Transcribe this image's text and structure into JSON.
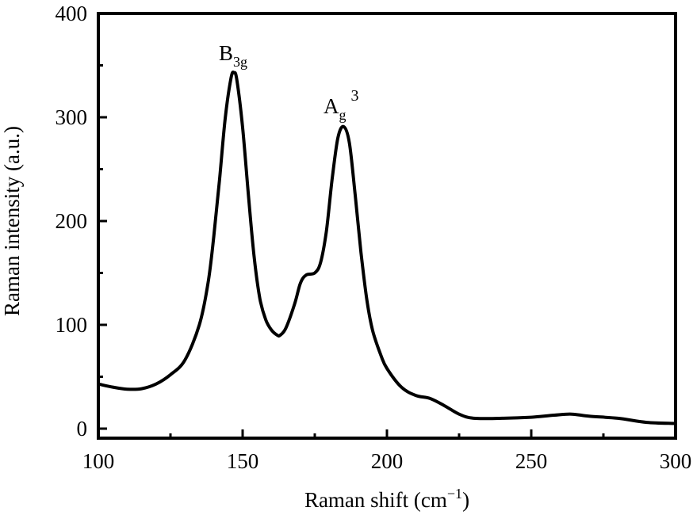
{
  "chart_data": {
    "type": "line",
    "title": "",
    "xlabel": "Raman shift (cm⁻¹)",
    "xlabel_parts": {
      "main": "Raman shift (cm",
      "sup": "−1",
      "close": ")"
    },
    "ylabel": "Raman intensity (a.u.)",
    "xlim": [
      100,
      300
    ],
    "ylim": [
      -9,
      400
    ],
    "x_ticks": [
      100,
      150,
      200,
      250,
      300
    ],
    "x_tick_labels": [
      "100",
      "150",
      "200",
      "250",
      "300"
    ],
    "x_minor_ticks": [
      125,
      175,
      225,
      275
    ],
    "y_ticks": [
      0,
      100,
      200,
      300,
      400
    ],
    "y_tick_labels": [
      "0",
      "100",
      "200",
      "300",
      "400"
    ],
    "y_minor_ticks": [
      50,
      150,
      250,
      350
    ],
    "grid": false,
    "legend": null,
    "line_color": "#000000",
    "annotations": [
      {
        "text": "B",
        "sub": "3g",
        "sup": "",
        "x": 147,
        "y": 343,
        "label": "B3g"
      },
      {
        "text": "A",
        "sub": "g",
        "sup": "3",
        "x": 185,
        "y": 291,
        "label": "Ag3"
      }
    ],
    "series": [
      {
        "name": "Raman spectrum",
        "x": [
          100,
          105,
          110,
          115,
          120,
          125,
          130,
          135,
          138,
          140,
          142,
          144,
          146,
          147,
          148,
          150,
          152,
          154,
          156,
          158,
          160,
          162,
          163,
          165,
          168,
          170,
          172,
          175,
          177,
          179,
          181,
          183,
          185,
          187,
          189,
          191,
          193,
          195,
          198,
          200,
          205,
          210,
          215,
          220,
          225,
          230,
          240,
          250,
          258,
          264,
          270,
          280,
          290,
          300
        ],
        "y": [
          43,
          40,
          38,
          38.5,
          43,
          52,
          66,
          100,
          140,
          185,
          240,
          300,
          338,
          343,
          336,
          290,
          225,
          165,
          125,
          105,
          95,
          90,
          90,
          97,
          120,
          140,
          148,
          150,
          160,
          190,
          240,
          280,
          291,
          275,
          225,
          170,
          125,
          95,
          70,
          58,
          40,
          32,
          29,
          22,
          14,
          10,
          10,
          11,
          13,
          14,
          12,
          10,
          6,
          5
        ]
      }
    ]
  }
}
